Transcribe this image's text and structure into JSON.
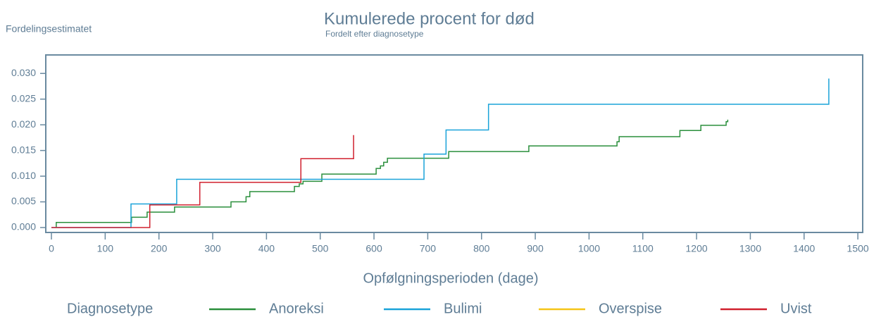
{
  "chart_data": {
    "type": "line",
    "step": true,
    "title": "Kumulerede procent for død",
    "subtitle": "Fordelt efter diagnosetype",
    "y_label": "Fordelingsestimatet",
    "x_label": "Opfølgningsperioden (dage)",
    "legend_title": "Diagnosetype",
    "xlim": [
      -10.5,
      1509
    ],
    "ylim": [
      -0.00096,
      0.0336
    ],
    "xticks": [
      0,
      100,
      200,
      300,
      400,
      500,
      600,
      700,
      800,
      900,
      1000,
      1100,
      1200,
      1300,
      1400,
      1500
    ],
    "yticks": [
      {
        "value": 0,
        "label": "0.000"
      },
      {
        "value": 0.005,
        "label": "0.005"
      },
      {
        "value": 0.01,
        "label": "0.010"
      },
      {
        "value": 0.015,
        "label": "0.015"
      },
      {
        "value": 0.02,
        "label": "0.020"
      },
      {
        "value": 0.025,
        "label": "0.025"
      },
      {
        "value": 0.03,
        "label": "0.030"
      }
    ],
    "series": [
      {
        "name": "Anoreksi",
        "color": "#2a8f3c",
        "x": [
          9,
          9,
          149,
          178,
          229,
          334,
          362,
          369,
          452,
          461,
          468,
          503,
          604,
          612,
          618,
          625,
          739,
          888,
          1052,
          1056,
          1169,
          1208,
          1255,
          1258
        ],
        "values": [
          0,
          0.001,
          0.002,
          0.003,
          0.004,
          0.005,
          0.006,
          0.007,
          0.008,
          0.0085,
          0.009,
          0.0104,
          0.0115,
          0.012,
          0.0127,
          0.0135,
          0.0148,
          0.0159,
          0.0167,
          0.0177,
          0.0189,
          0.0199,
          0.0206,
          0.021
        ]
      },
      {
        "name": "Bulimi",
        "color": "#1aa3d9",
        "x": [
          0,
          148,
          233,
          693,
          734,
          813,
          1446
        ],
        "values": [
          0,
          0.0046,
          0.0094,
          0.0143,
          0.019,
          0.024,
          0.029
        ]
      },
      {
        "name": "Overspise",
        "color": "#f5c518",
        "x": [],
        "values": []
      },
      {
        "name": "Uvist",
        "color": "#d0202e",
        "x": [
          0,
          183,
          276,
          464,
          562
        ],
        "values": [
          0,
          0.0044,
          0.0088,
          0.0134,
          0.018
        ]
      }
    ]
  }
}
